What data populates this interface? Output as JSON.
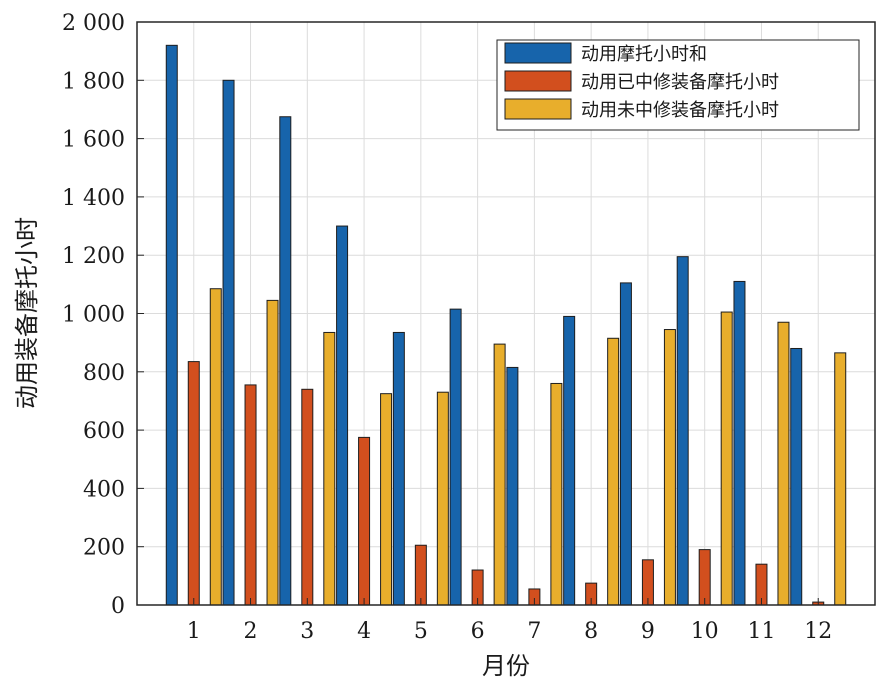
{
  "chart_data": {
    "type": "bar",
    "title": "",
    "xlabel": "月份",
    "ylabel": "动用装备摩托小时",
    "categories": [
      "1",
      "2",
      "3",
      "4",
      "5",
      "6",
      "7",
      "8",
      "9",
      "10",
      "11",
      "12"
    ],
    "ylim": [
      0,
      2000
    ],
    "yticks": [
      0,
      200,
      400,
      600,
      800,
      1000,
      1200,
      1400,
      1600,
      1800,
      2000
    ],
    "ytick_labels": [
      "0",
      "200",
      "400",
      "600",
      "800",
      "1 000",
      "1 200",
      "1 400",
      "1 600",
      "1 800",
      "2 000"
    ],
    "grid": true,
    "legend_position": "top-right",
    "series": [
      {
        "name": "动用摩托小时和",
        "color": "#1764ab",
        "values": [
          1920,
          1800,
          1675,
          1300,
          935,
          1015,
          815,
          990,
          1105,
          1195,
          1110,
          880
        ]
      },
      {
        "name": "动用已中修装备摩托小时",
        "color": "#d24f1e",
        "values": [
          835,
          755,
          740,
          575,
          205,
          120,
          55,
          75,
          155,
          190,
          140,
          10
        ]
      },
      {
        "name": "动用未中修装备摩托小时",
        "color": "#e8ae2c",
        "values": [
          1085,
          1045,
          935,
          725,
          730,
          895,
          760,
          915,
          945,
          1005,
          970,
          865
        ]
      }
    ]
  }
}
